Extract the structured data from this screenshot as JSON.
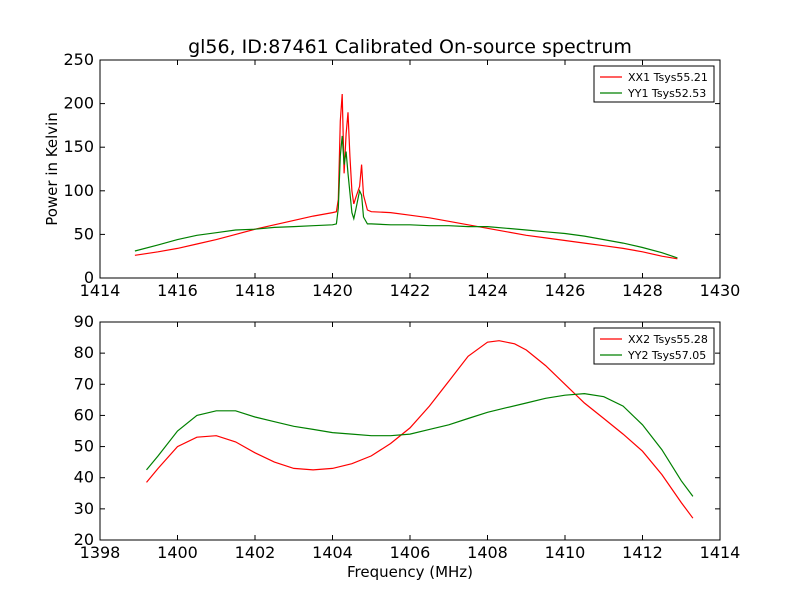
{
  "chart_data": [
    {
      "type": "line",
      "title": "gl56, ID:87461 Calibrated On-source spectrum",
      "xlabel": "",
      "ylabel": "Power in Kelvin",
      "xlim": [
        1414,
        1430
      ],
      "ylim": [
        0,
        250
      ],
      "xticks": [
        1414,
        1416,
        1418,
        1420,
        1422,
        1424,
        1426,
        1428,
        1430
      ],
      "yticks": [
        0,
        50,
        100,
        150,
        200,
        250
      ],
      "grid": false,
      "legend_position": "top-right",
      "series": [
        {
          "name": "XX1 Tsys55.21",
          "color": "#ff0000",
          "points": [
            [
              1414.9,
              26
            ],
            [
              1415.5,
              30
            ],
            [
              1416,
              34
            ],
            [
              1416.5,
              39
            ],
            [
              1417,
              44
            ],
            [
              1417.5,
              50
            ],
            [
              1418,
              56
            ],
            [
              1418.5,
              61
            ],
            [
              1419,
              66
            ],
            [
              1419.5,
              71
            ],
            [
              1420,
              75
            ],
            [
              1420.1,
              76
            ],
            [
              1420.15,
              90
            ],
            [
              1420.2,
              180
            ],
            [
              1420.25,
              211
            ],
            [
              1420.3,
              120
            ],
            [
              1420.35,
              165
            ],
            [
              1420.4,
              190
            ],
            [
              1420.45,
              140
            ],
            [
              1420.5,
              100
            ],
            [
              1420.55,
              85
            ],
            [
              1420.6,
              92
            ],
            [
              1420.7,
              105
            ],
            [
              1420.75,
              130
            ],
            [
              1420.8,
              95
            ],
            [
              1420.9,
              78
            ],
            [
              1421,
              76
            ],
            [
              1421.5,
              75
            ],
            [
              1422,
              72
            ],
            [
              1422.5,
              69
            ],
            [
              1423,
              65
            ],
            [
              1423.5,
              61
            ],
            [
              1424,
              57
            ],
            [
              1424.5,
              53
            ],
            [
              1425,
              49
            ],
            [
              1425.5,
              46
            ],
            [
              1426,
              43
            ],
            [
              1426.5,
              40
            ],
            [
              1427,
              37
            ],
            [
              1427.5,
              34
            ],
            [
              1428,
              30
            ],
            [
              1428.5,
              25
            ],
            [
              1428.9,
              22
            ]
          ]
        },
        {
          "name": "YY1 Tsys52.53",
          "color": "#008000",
          "points": [
            [
              1414.9,
              31
            ],
            [
              1415.5,
              38
            ],
            [
              1416,
              44
            ],
            [
              1416.5,
              49
            ],
            [
              1417,
              52
            ],
            [
              1417.5,
              55
            ],
            [
              1418,
              56
            ],
            [
              1418.5,
              58
            ],
            [
              1419,
              59
            ],
            [
              1419.5,
              60
            ],
            [
              1420,
              61
            ],
            [
              1420.1,
              62
            ],
            [
              1420.15,
              80
            ],
            [
              1420.2,
              140
            ],
            [
              1420.25,
              163
            ],
            [
              1420.3,
              130
            ],
            [
              1420.35,
              145
            ],
            [
              1420.4,
              120
            ],
            [
              1420.5,
              75
            ],
            [
              1420.55,
              68
            ],
            [
              1420.6,
              78
            ],
            [
              1420.7,
              100
            ],
            [
              1420.75,
              95
            ],
            [
              1420.8,
              70
            ],
            [
              1420.9,
              62
            ],
            [
              1421,
              62
            ],
            [
              1421.5,
              61
            ],
            [
              1422,
              61
            ],
            [
              1422.5,
              60
            ],
            [
              1423,
              60
            ],
            [
              1423.5,
              59
            ],
            [
              1424,
              59
            ],
            [
              1424.5,
              57
            ],
            [
              1425,
              55
            ],
            [
              1425.5,
              53
            ],
            [
              1426,
              51
            ],
            [
              1426.5,
              48
            ],
            [
              1427,
              44
            ],
            [
              1427.5,
              40
            ],
            [
              1428,
              35
            ],
            [
              1428.5,
              29
            ],
            [
              1428.9,
              23
            ]
          ]
        }
      ]
    },
    {
      "type": "line",
      "title": "",
      "xlabel": "Frequency (MHz)",
      "ylabel": "",
      "xlim": [
        1398,
        1414
      ],
      "ylim": [
        20,
        90
      ],
      "xticks": [
        1398,
        1400,
        1402,
        1404,
        1406,
        1408,
        1410,
        1412,
        1414
      ],
      "yticks": [
        20,
        30,
        40,
        50,
        60,
        70,
        80,
        90
      ],
      "grid": false,
      "legend_position": "top-right",
      "series": [
        {
          "name": "XX2 Tsys55.28",
          "color": "#ff0000",
          "points": [
            [
              1399.2,
              38.5
            ],
            [
              1399.5,
              43
            ],
            [
              1400,
              50
            ],
            [
              1400.5,
              53
            ],
            [
              1401,
              53.5
            ],
            [
              1401.5,
              51.5
            ],
            [
              1402,
              48
            ],
            [
              1402.5,
              45
            ],
            [
              1403,
              43
            ],
            [
              1403.5,
              42.5
            ],
            [
              1404,
              43
            ],
            [
              1404.5,
              44.5
            ],
            [
              1405,
              47
            ],
            [
              1405.5,
              51
            ],
            [
              1406,
              56
            ],
            [
              1406.5,
              63
            ],
            [
              1407,
              71
            ],
            [
              1407.5,
              79
            ],
            [
              1408,
              83.5
            ],
            [
              1408.3,
              84
            ],
            [
              1408.7,
              83
            ],
            [
              1409,
              81
            ],
            [
              1409.5,
              76
            ],
            [
              1410,
              70
            ],
            [
              1410.5,
              64
            ],
            [
              1411,
              59
            ],
            [
              1411.5,
              54
            ],
            [
              1412,
              48.5
            ],
            [
              1412.5,
              41
            ],
            [
              1413,
              32
            ],
            [
              1413.3,
              27
            ]
          ]
        },
        {
          "name": "YY2 Tsys57.05",
          "color": "#008000",
          "points": [
            [
              1399.2,
              42.5
            ],
            [
              1399.5,
              47
            ],
            [
              1400,
              55
            ],
            [
              1400.5,
              60
            ],
            [
              1401,
              61.5
            ],
            [
              1401.5,
              61.5
            ],
            [
              1402,
              59.5
            ],
            [
              1402.5,
              58
            ],
            [
              1403,
              56.5
            ],
            [
              1403.5,
              55.5
            ],
            [
              1404,
              54.5
            ],
            [
              1404.5,
              54
            ],
            [
              1405,
              53.5
            ],
            [
              1405.5,
              53.5
            ],
            [
              1406,
              54
            ],
            [
              1406.5,
              55.5
            ],
            [
              1407,
              57
            ],
            [
              1407.5,
              59
            ],
            [
              1408,
              61
            ],
            [
              1408.5,
              62.5
            ],
            [
              1409,
              64
            ],
            [
              1409.5,
              65.5
            ],
            [
              1410,
              66.5
            ],
            [
              1410.5,
              67
            ],
            [
              1411,
              66
            ],
            [
              1411.5,
              63
            ],
            [
              1412,
              57
            ],
            [
              1412.5,
              49
            ],
            [
              1413,
              39
            ],
            [
              1413.3,
              34
            ]
          ]
        }
      ]
    }
  ]
}
